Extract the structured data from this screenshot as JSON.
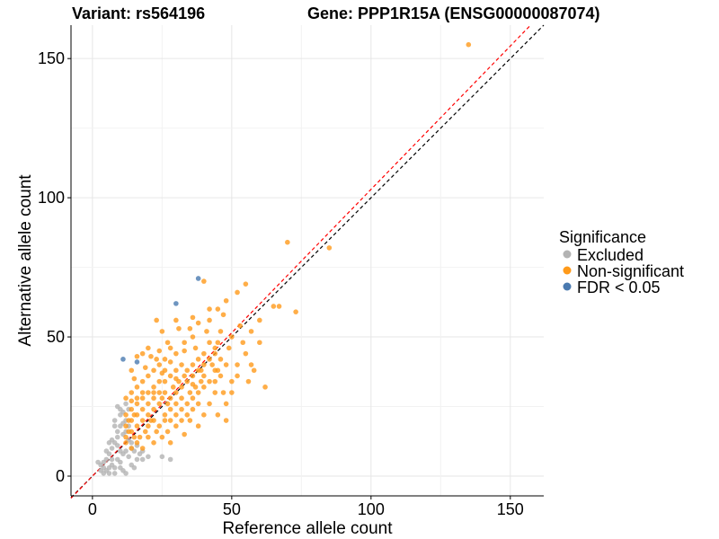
{
  "chart_data": {
    "type": "scatter",
    "title_left": "Variant: rs564196",
    "title_right": "Gene: PPP1R15A (ENSG00000087074)",
    "xlabel": "Reference allele count",
    "ylabel": "Alternative allele count",
    "xlim": [
      -7.7,
      162
    ],
    "ylim": [
      -7.1,
      162
    ],
    "xticks": [
      "0",
      "50",
      "100",
      "150"
    ],
    "yticks": [
      "0",
      "50",
      "100",
      "150"
    ],
    "xtick_values": [
      0,
      50,
      100,
      150
    ],
    "ytick_values": [
      0,
      50,
      100,
      150
    ],
    "grid": true,
    "legend": {
      "title": "Significance",
      "placement": "right",
      "entries": [
        "Excluded",
        "Non-significant",
        "FDR < 0.05"
      ]
    },
    "colors": {
      "Excluded": "#b3b3b3",
      "Non-significant": "#ff9a1a",
      "FDR < 0.05": "#4a7ab0",
      "identity_line": "#000000",
      "fit_line": "#ff0000"
    },
    "reference_lines": [
      {
        "name": "identity",
        "slope": 1.0,
        "style": "dashed",
        "color": "#000000"
      },
      {
        "name": "fit",
        "slope": 1.03,
        "style": "dashed",
        "color": "#ff0000"
      }
    ],
    "series": [
      {
        "name": "Excluded",
        "points": [
          [
            2,
            5
          ],
          [
            3,
            4
          ],
          [
            4,
            3
          ],
          [
            5,
            2
          ],
          [
            6,
            1
          ],
          [
            5,
            6
          ],
          [
            7,
            4
          ],
          [
            8,
            3
          ],
          [
            6,
            8
          ],
          [
            7,
            10
          ],
          [
            9,
            6
          ],
          [
            10,
            5
          ],
          [
            11,
            2
          ],
          [
            12,
            1
          ],
          [
            8,
            12
          ],
          [
            9,
            14
          ],
          [
            10,
            9
          ],
          [
            11,
            8
          ],
          [
            12,
            16
          ],
          [
            13,
            7
          ],
          [
            14,
            4
          ],
          [
            15,
            3
          ],
          [
            10,
            18
          ],
          [
            11,
            19
          ],
          [
            9,
            16
          ],
          [
            8,
            20
          ],
          [
            12,
            20
          ],
          [
            13,
            13
          ],
          [
            14,
            10
          ],
          [
            16,
            6
          ],
          [
            17,
            8
          ],
          [
            18,
            6
          ],
          [
            20,
            7
          ],
          [
            25,
            7
          ],
          [
            28,
            6
          ],
          [
            10,
            24
          ],
          [
            9,
            25
          ],
          [
            11,
            23
          ],
          [
            8,
            18
          ],
          [
            6,
            12
          ],
          [
            4,
            5
          ],
          [
            3,
            2
          ],
          [
            7,
            6
          ],
          [
            13,
            24
          ],
          [
            12,
            26
          ],
          [
            10,
            22
          ],
          [
            4,
            1
          ],
          [
            6,
            3
          ],
          [
            8,
            1
          ],
          [
            10,
            3
          ],
          [
            12,
            9
          ],
          [
            14,
            12
          ],
          [
            15,
            9
          ],
          [
            9,
            11
          ],
          [
            7,
            13
          ],
          [
            11,
            15
          ],
          [
            13,
            18
          ],
          [
            16,
            11
          ],
          [
            18,
            9
          ],
          [
            5,
            9
          ]
        ]
      },
      {
        "name": "Non-significant",
        "points": [
          [
            135,
            155
          ],
          [
            70,
            84
          ],
          [
            85,
            82
          ],
          [
            73,
            59
          ],
          [
            55,
            69
          ],
          [
            67,
            61
          ],
          [
            65,
            61
          ],
          [
            52,
            66
          ],
          [
            48,
            63
          ],
          [
            40,
            70
          ],
          [
            45,
            60
          ],
          [
            42,
            60
          ],
          [
            30,
            56
          ],
          [
            31,
            53
          ],
          [
            36,
            57
          ],
          [
            60,
            56
          ],
          [
            54,
            48
          ],
          [
            50,
            50
          ],
          [
            45,
            48
          ],
          [
            49,
            46
          ],
          [
            39,
            38
          ],
          [
            45,
            38
          ],
          [
            57,
            40
          ],
          [
            60,
            48
          ],
          [
            47,
            58
          ],
          [
            38,
            55
          ],
          [
            35,
            53
          ],
          [
            25,
            52
          ],
          [
            23,
            56
          ],
          [
            42,
            48
          ],
          [
            36,
            50
          ],
          [
            33,
            48
          ],
          [
            20,
            46
          ],
          [
            21,
            43
          ],
          [
            18,
            44
          ],
          [
            16,
            43
          ],
          [
            23,
            42
          ],
          [
            28,
            41
          ],
          [
            14,
            38
          ],
          [
            25,
            37
          ],
          [
            30,
            35
          ],
          [
            36,
            33
          ],
          [
            40,
            32
          ],
          [
            44,
            30
          ],
          [
            48,
            26
          ],
          [
            52,
            36
          ],
          [
            50,
            30
          ],
          [
            56,
            34
          ],
          [
            62,
            32
          ],
          [
            45,
            22
          ],
          [
            40,
            22
          ],
          [
            35,
            20
          ],
          [
            30,
            18
          ],
          [
            27,
            16
          ],
          [
            25,
            14
          ],
          [
            20,
            14
          ],
          [
            16,
            12
          ],
          [
            12,
            14
          ],
          [
            12,
            18
          ],
          [
            13,
            20
          ],
          [
            15,
            22
          ],
          [
            14,
            27
          ],
          [
            16,
            28
          ],
          [
            18,
            30
          ],
          [
            22,
            32
          ],
          [
            24,
            34
          ],
          [
            26,
            30
          ],
          [
            28,
            28
          ],
          [
            30,
            30
          ],
          [
            32,
            32
          ],
          [
            34,
            34
          ],
          [
            36,
            36
          ],
          [
            38,
            38
          ],
          [
            40,
            40
          ],
          [
            42,
            42
          ],
          [
            44,
            44
          ],
          [
            46,
            42
          ],
          [
            24,
            26
          ],
          [
            22,
            24
          ],
          [
            20,
            22
          ],
          [
            18,
            20
          ],
          [
            16,
            18
          ],
          [
            14,
            16
          ],
          [
            18,
            24
          ],
          [
            20,
            26
          ],
          [
            22,
            28
          ],
          [
            26,
            22
          ],
          [
            28,
            24
          ],
          [
            30,
            26
          ],
          [
            32,
            28
          ],
          [
            34,
            26
          ],
          [
            36,
            28
          ],
          [
            38,
            30
          ],
          [
            40,
            36
          ],
          [
            42,
            34
          ],
          [
            44,
            38
          ],
          [
            46,
            36
          ],
          [
            48,
            40
          ],
          [
            20,
            18
          ],
          [
            22,
            20
          ],
          [
            24,
            18
          ],
          [
            26,
            20
          ],
          [
            28,
            20
          ],
          [
            30,
            22
          ],
          [
            32,
            24
          ],
          [
            34,
            22
          ],
          [
            36,
            24
          ],
          [
            38,
            26
          ],
          [
            16,
            22
          ],
          [
            14,
            20
          ],
          [
            12,
            22
          ],
          [
            14,
            24
          ],
          [
            16,
            26
          ],
          [
            18,
            28
          ],
          [
            20,
            30
          ],
          [
            22,
            30
          ],
          [
            24,
            30
          ],
          [
            26,
            34
          ],
          [
            28,
            36
          ],
          [
            30,
            38
          ],
          [
            32,
            40
          ],
          [
            34,
            38
          ],
          [
            36,
            40
          ],
          [
            38,
            42
          ],
          [
            40,
            44
          ],
          [
            30,
            44
          ],
          [
            28,
            46
          ],
          [
            26,
            42
          ],
          [
            24,
            40
          ],
          [
            22,
            38
          ],
          [
            20,
            36
          ],
          [
            18,
            34
          ],
          [
            16,
            32
          ],
          [
            14,
            30
          ],
          [
            12,
            28
          ],
          [
            15,
            35
          ],
          [
            19,
            39
          ],
          [
            24,
            45
          ],
          [
            27,
            48
          ],
          [
            33,
            45
          ],
          [
            37,
            46
          ],
          [
            41,
            52
          ],
          [
            46,
            52
          ],
          [
            52,
            40
          ],
          [
            55,
            44
          ],
          [
            58,
            38
          ],
          [
            50,
            34
          ],
          [
            48,
            20
          ],
          [
            42,
            26
          ],
          [
            38,
            18
          ],
          [
            33,
            15
          ],
          [
            28,
            12
          ],
          [
            22,
            12
          ],
          [
            18,
            10
          ],
          [
            14,
            10
          ],
          [
            12,
            12
          ],
          [
            19,
            16
          ],
          [
            23,
            16
          ],
          [
            27,
            26
          ],
          [
            31,
            34
          ],
          [
            35,
            30
          ],
          [
            39,
            34
          ],
          [
            43,
            40
          ],
          [
            25,
            28
          ],
          [
            29,
            32
          ],
          [
            33,
            36
          ],
          [
            37,
            32
          ],
          [
            21,
            20
          ],
          [
            17,
            14
          ],
          [
            13,
            16
          ],
          [
            15,
            14
          ],
          [
            26,
            38
          ],
          [
            32,
            20
          ],
          [
            44,
            34
          ],
          [
            47,
            30
          ],
          [
            53,
            54
          ],
          [
            57,
            52
          ],
          [
            42,
            56
          ],
          [
            44,
            46
          ]
        ]
      },
      {
        "name": "FDR < 0.05",
        "points": [
          [
            38,
            71
          ],
          [
            30,
            62
          ],
          [
            11,
            42
          ],
          [
            16,
            41
          ]
        ]
      }
    ]
  }
}
